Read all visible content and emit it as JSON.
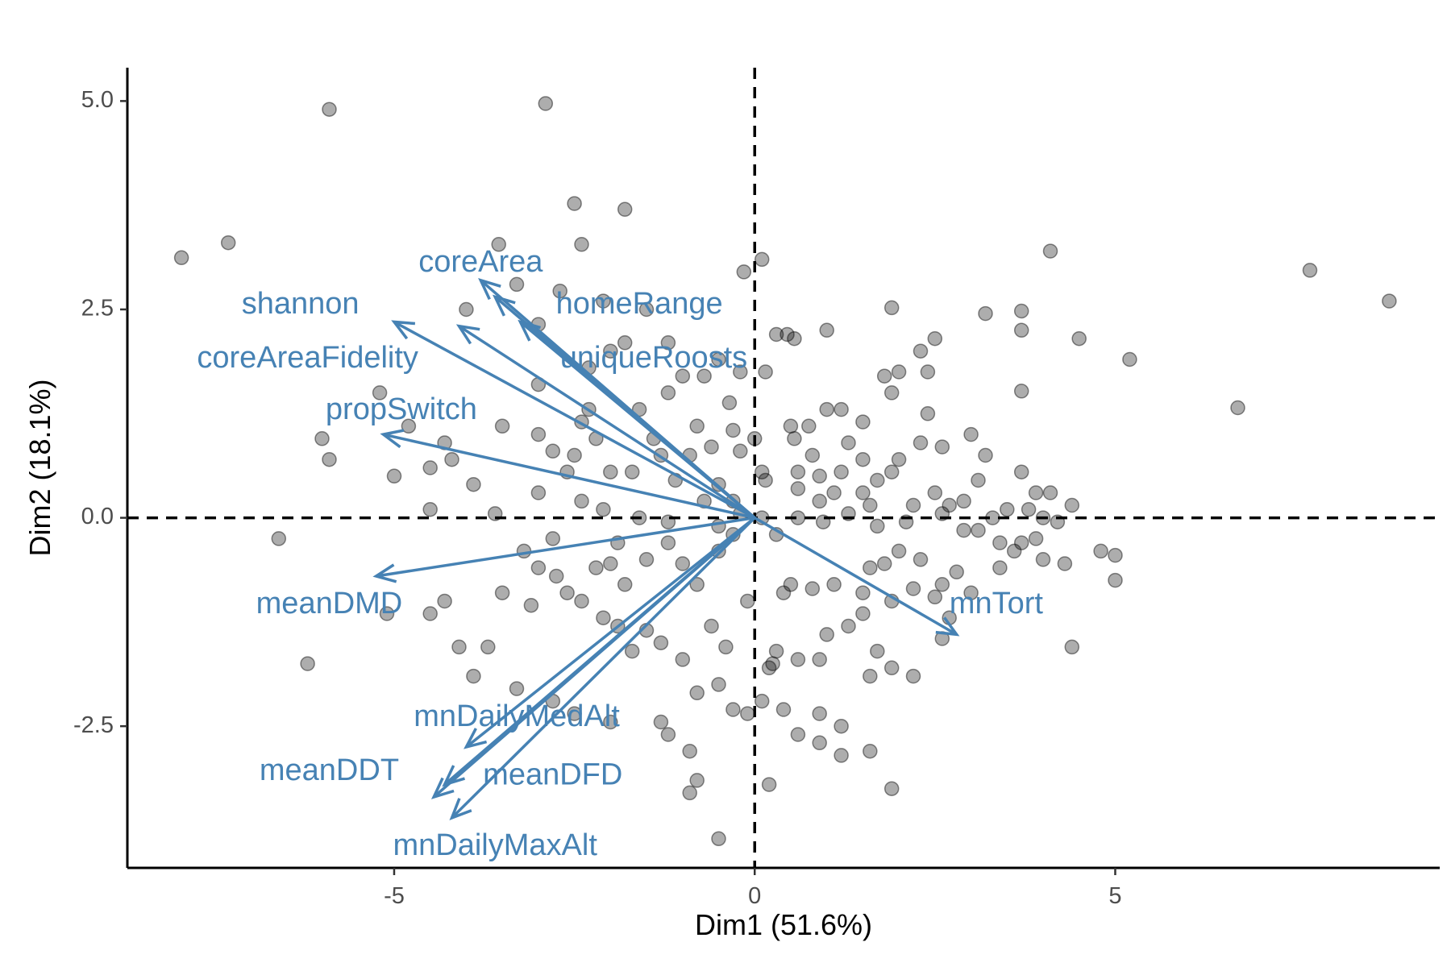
{
  "chart_data": {
    "type": "scatter",
    "subtype": "pca-biplot",
    "xlabel": "Dim1 (51.6%)",
    "ylabel": "Dim2 (18.1%)",
    "xlim": [
      -8.7,
      9.5
    ],
    "ylim": [
      -4.2,
      5.4
    ],
    "x_ticks": [
      -5,
      0,
      5
    ],
    "x_tick_labels": [
      "-5",
      "0",
      "5"
    ],
    "y_ticks": [
      -2.5,
      0,
      2.5,
      5
    ],
    "y_tick_labels": [
      "-2.5",
      "0.0",
      "2.5",
      "5.0"
    ],
    "grid": false,
    "reference_lines": {
      "x": 0,
      "y": 0,
      "style": "dashed"
    },
    "colors": {
      "points": "#000000",
      "arrows": "#4682b4",
      "axes": "#000000"
    },
    "points": [
      [
        -7.95,
        3.12
      ],
      [
        -5.9,
        4.9
      ],
      [
        -2.9,
        4.97
      ],
      [
        -2.5,
        3.77
      ],
      [
        -1.8,
        3.7
      ],
      [
        -3.55,
        3.28
      ],
      [
        -2.4,
        3.28
      ],
      [
        -3.3,
        2.8
      ],
      [
        -2.7,
        2.72
      ],
      [
        -4.0,
        2.5
      ],
      [
        -3.0,
        2.32
      ],
      [
        -2.1,
        2.6
      ],
      [
        -1.5,
        2.5
      ],
      [
        0.1,
        3.1
      ],
      [
        -0.15,
        2.95
      ],
      [
        0.45,
        2.2
      ],
      [
        0.55,
        2.15
      ],
      [
        0.3,
        2.2
      ],
      [
        1.0,
        2.25
      ],
      [
        1.9,
        2.52
      ],
      [
        2.5,
        2.15
      ],
      [
        3.2,
        2.45
      ],
      [
        3.7,
        2.48
      ],
      [
        3.7,
        2.25
      ],
      [
        4.5,
        2.15
      ],
      [
        5.2,
        1.9
      ],
      [
        4.1,
        3.2
      ],
      [
        7.7,
        2.97
      ],
      [
        8.8,
        2.6
      ],
      [
        6.7,
        1.32
      ],
      [
        -5.2,
        1.5
      ],
      [
        -4.8,
        1.1
      ],
      [
        -6.0,
        0.95
      ],
      [
        -5.9,
        0.7
      ],
      [
        -5.0,
        0.5
      ],
      [
        -4.3,
        0.9
      ],
      [
        -4.2,
        0.7
      ],
      [
        -3.9,
        0.4
      ],
      [
        -4.5,
        0.6
      ],
      [
        -4.5,
        0.1
      ],
      [
        -3.5,
        1.1
      ],
      [
        -3.0,
        1.0
      ],
      [
        -2.8,
        0.8
      ],
      [
        -2.6,
        0.55
      ],
      [
        -2.4,
        1.15
      ],
      [
        -2.3,
        1.3
      ],
      [
        -2.2,
        0.95
      ],
      [
        -2.5,
        0.75
      ],
      [
        -2.0,
        0.55
      ],
      [
        -1.7,
        0.55
      ],
      [
        -1.4,
        0.95
      ],
      [
        -1.3,
        0.75
      ],
      [
        -1.1,
        0.45
      ],
      [
        -0.9,
        0.75
      ],
      [
        -0.8,
        1.1
      ],
      [
        -0.6,
        0.85
      ],
      [
        -0.3,
        1.05
      ],
      [
        -0.2,
        0.8
      ],
      [
        -0.35,
        1.38
      ],
      [
        -1.2,
        1.5
      ],
      [
        -1.6,
        1.3
      ],
      [
        -2.3,
        1.8
      ],
      [
        -3.0,
        1.6
      ],
      [
        -2.0,
        2.0
      ],
      [
        -1.8,
        2.1
      ],
      [
        -1.2,
        2.1
      ],
      [
        -0.5,
        1.9
      ],
      [
        -0.2,
        1.75
      ],
      [
        0.15,
        1.75
      ],
      [
        -1.0,
        1.7
      ],
      [
        -0.7,
        1.7
      ],
      [
        0.5,
        1.1
      ],
      [
        0.75,
        1.1
      ],
      [
        1.0,
        1.3
      ],
      [
        1.2,
        1.3
      ],
      [
        1.5,
        1.15
      ],
      [
        1.8,
        1.7
      ],
      [
        1.9,
        1.5
      ],
      [
        2.0,
        1.75
      ],
      [
        2.3,
        2.0
      ],
      [
        2.4,
        1.75
      ],
      [
        2.4,
        1.25
      ],
      [
        1.3,
        0.9
      ],
      [
        1.5,
        0.7
      ],
      [
        1.2,
        0.55
      ],
      [
        0.8,
        0.75
      ],
      [
        0.6,
        0.55
      ],
      [
        0.1,
        0.55
      ],
      [
        0.15,
        0.45
      ],
      [
        -0.5,
        0.4
      ],
      [
        -0.3,
        0.2
      ],
      [
        0.6,
        0.35
      ],
      [
        0.9,
        0.2
      ],
      [
        1.1,
        0.3
      ],
      [
        1.5,
        0.3
      ],
      [
        1.6,
        0.15
      ],
      [
        1.9,
        0.55
      ],
      [
        2.0,
        0.7
      ],
      [
        2.2,
        0.15
      ],
      [
        2.5,
        0.3
      ],
      [
        2.7,
        0.15
      ],
      [
        2.9,
        0.2
      ],
      [
        3.1,
        0.45
      ],
      [
        3.2,
        0.75
      ],
      [
        3.3,
        0.0
      ],
      [
        3.7,
        0.55
      ],
      [
        3.9,
        0.3
      ],
      [
        4.1,
        0.3
      ],
      [
        4.4,
        0.15
      ],
      [
        3.1,
        -0.15
      ],
      [
        3.4,
        -0.3
      ],
      [
        3.6,
        -0.4
      ],
      [
        4.0,
        -0.5
      ],
      [
        4.3,
        -0.55
      ],
      [
        4.8,
        -0.4
      ],
      [
        5.0,
        -0.45
      ],
      [
        5.0,
        -0.75
      ],
      [
        4.4,
        -1.55
      ],
      [
        3.0,
        -0.9
      ],
      [
        2.6,
        -0.8
      ],
      [
        2.3,
        -0.5
      ],
      [
        2.0,
        -0.4
      ],
      [
        1.8,
        -0.55
      ],
      [
        1.6,
        -0.6
      ],
      [
        1.5,
        -0.9
      ],
      [
        1.1,
        -0.8
      ],
      [
        0.8,
        -0.85
      ],
      [
        0.5,
        -0.8
      ],
      [
        0.4,
        -0.9
      ],
      [
        1.7,
        -1.6
      ],
      [
        1.6,
        -1.9
      ],
      [
        1.9,
        -1.8
      ],
      [
        2.2,
        -1.9
      ],
      [
        2.6,
        -1.45
      ],
      [
        1.3,
        -1.3
      ],
      [
        1.0,
        -1.4
      ],
      [
        0.9,
        -1.7
      ],
      [
        0.6,
        -1.7
      ],
      [
        0.3,
        -1.6
      ],
      [
        0.2,
        -1.8
      ],
      [
        0.1,
        -2.2
      ],
      [
        -0.1,
        -2.35
      ],
      [
        -0.3,
        -2.3
      ],
      [
        -0.5,
        -2.0
      ],
      [
        -0.8,
        -2.1
      ],
      [
        -1.0,
        -1.7
      ],
      [
        -1.3,
        -1.5
      ],
      [
        -1.7,
        -1.6
      ],
      [
        -1.5,
        -1.35
      ],
      [
        -1.9,
        -1.3
      ],
      [
        -2.1,
        -1.2
      ],
      [
        -2.4,
        -1.0
      ],
      [
        -2.6,
        -0.9
      ],
      [
        -2.2,
        -0.6
      ],
      [
        -2.0,
        -0.55
      ],
      [
        -1.8,
        -0.8
      ],
      [
        -1.5,
        -0.5
      ],
      [
        -1.2,
        -0.3
      ],
      [
        -1.0,
        -0.55
      ],
      [
        -0.8,
        -0.8
      ],
      [
        -0.5,
        -0.4
      ],
      [
        -0.3,
        -0.2
      ],
      [
        -3.0,
        -0.6
      ],
      [
        -3.2,
        -0.4
      ],
      [
        -3.5,
        -0.9
      ],
      [
        -4.3,
        -1.0
      ],
      [
        -4.1,
        -1.55
      ],
      [
        -4.5,
        -1.15
      ],
      [
        -3.7,
        -1.55
      ],
      [
        -3.9,
        -1.9
      ],
      [
        -3.3,
        -2.05
      ],
      [
        -2.8,
        -2.2
      ],
      [
        -2.5,
        -2.35
      ],
      [
        -2.0,
        -2.45
      ],
      [
        -1.3,
        -2.45
      ],
      [
        -1.2,
        -2.6
      ],
      [
        -0.9,
        -2.8
      ],
      [
        -0.8,
        -3.15
      ],
      [
        -0.9,
        -3.3
      ],
      [
        -0.5,
        -3.85
      ],
      [
        0.2,
        -3.2
      ],
      [
        0.9,
        -2.35
      ],
      [
        0.6,
        -2.6
      ],
      [
        0.9,
        -2.7
      ],
      [
        1.2,
        -2.85
      ],
      [
        1.6,
        -2.8
      ],
      [
        1.9,
        -3.25
      ],
      [
        -6.2,
        -1.75
      ],
      [
        -5.1,
        -1.15
      ],
      [
        -6.6,
        -0.25
      ],
      [
        -7.3,
        3.3
      ],
      [
        -3.6,
        0.05
      ],
      [
        -3.0,
        0.3
      ],
      [
        -2.4,
        0.2
      ],
      [
        -2.1,
        0.1
      ],
      [
        -1.6,
        0.0
      ],
      [
        -1.2,
        -0.05
      ],
      [
        -0.7,
        0.2
      ],
      [
        -0.5,
        -0.1
      ],
      [
        -0.2,
        0.05
      ],
      [
        0.1,
        0.0
      ],
      [
        0.3,
        -0.2
      ],
      [
        0.6,
        0.0
      ],
      [
        0.95,
        -0.05
      ],
      [
        1.3,
        0.05
      ],
      [
        1.7,
        -0.1
      ],
      [
        2.1,
        -0.05
      ],
      [
        2.6,
        0.05
      ],
      [
        2.9,
        -0.15
      ],
      [
        3.5,
        0.1
      ],
      [
        3.8,
        0.1
      ],
      [
        4.0,
        0.0
      ],
      [
        3.9,
        -0.25
      ],
      [
        4.2,
        -0.05
      ],
      [
        2.2,
        -0.85
      ],
      [
        2.5,
        -0.95
      ],
      [
        2.7,
        -1.2
      ],
      [
        1.5,
        -1.15
      ],
      [
        1.9,
        -1.0
      ],
      [
        2.8,
        -0.65
      ],
      [
        3.4,
        -0.6
      ],
      [
        3.7,
        -0.3
      ],
      [
        0.0,
        0.95
      ],
      [
        0.55,
        0.95
      ],
      [
        0.9,
        0.5
      ],
      [
        1.7,
        0.45
      ],
      [
        2.3,
        0.9
      ],
      [
        2.6,
        0.85
      ],
      [
        3.0,
        1.0
      ],
      [
        3.7,
        1.52
      ],
      [
        -1.9,
        -0.3
      ],
      [
        -2.8,
        -0.25
      ],
      [
        -3.1,
        -1.05
      ],
      [
        -2.75,
        -0.7
      ],
      [
        -0.1,
        -1.0
      ],
      [
        0.25,
        -1.75
      ],
      [
        1.2,
        -2.5
      ],
      [
        0.4,
        -2.3
      ],
      [
        -0.4,
        -1.55
      ],
      [
        -0.6,
        -1.3
      ]
    ],
    "variables": [
      {
        "name": "coreArea",
        "x": -3.8,
        "y": 2.85,
        "lx": -3.8,
        "ly": 3.05
      },
      {
        "name": "homeRange",
        "x": -3.6,
        "y": 2.65,
        "lx": -1.6,
        "ly": 2.55
      },
      {
        "name": "shannon",
        "x": -5.0,
        "y": 2.35,
        "lx": -6.3,
        "ly": 2.55
      },
      {
        "name": "uniqueRoosts",
        "x": -3.25,
        "y": 2.35,
        "lx": -1.4,
        "ly": 1.9
      },
      {
        "name": "coreAreaFidelity",
        "x": -4.1,
        "y": 2.3,
        "lx": -6.2,
        "ly": 1.9
      },
      {
        "name": "propSwitch",
        "x": -5.15,
        "y": 1.0,
        "lx": -4.9,
        "ly": 1.28
      },
      {
        "name": "meanDMD",
        "x": -5.25,
        "y": -0.7,
        "lx": -5.9,
        "ly": -1.05
      },
      {
        "name": "mnTort",
        "x": 2.8,
        "y": -1.4,
        "lx": 3.35,
        "ly": -1.05
      },
      {
        "name": "mnDailyMedAlt",
        "x": -4.0,
        "y": -2.75,
        "lx": -3.3,
        "ly": -2.4
      },
      {
        "name": "meanDDT",
        "x": -4.3,
        "y": -3.2,
        "lx": -5.9,
        "ly": -3.05
      },
      {
        "name": "meanDFD",
        "x": -4.45,
        "y": -3.35,
        "lx": -2.8,
        "ly": -3.1
      },
      {
        "name": "mnDailyMaxAlt",
        "x": -4.2,
        "y": -3.6,
        "lx": -3.6,
        "ly": -3.95
      }
    ]
  }
}
